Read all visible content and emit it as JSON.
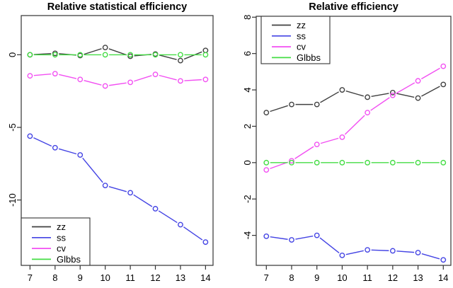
{
  "figure": {
    "background": "#ffffff",
    "axis_color": "#333333",
    "text_color": "#000000"
  },
  "chart_data": [
    {
      "type": "line",
      "title": "Relative statistical efficiency",
      "x": [
        7,
        8,
        9,
        10,
        11,
        12,
        13,
        14
      ],
      "xticks": [
        7,
        8,
        9,
        10,
        11,
        12,
        13,
        14
      ],
      "yticks": [
        0,
        -5,
        -10
      ],
      "xlim": [
        6.65,
        14.3
      ],
      "ylim": [
        -14.5,
        2.7
      ],
      "grid": false,
      "legend_position": "bottom-left",
      "legend_entries": [
        "zz",
        "ss",
        "cv",
        "Glbbs"
      ],
      "series": [
        {
          "name": "zz",
          "color": "#404040",
          "values": [
            0.0,
            0.1,
            -0.05,
            0.5,
            -0.1,
            0.05,
            -0.4,
            0.3
          ]
        },
        {
          "name": "ss",
          "color": "#4444e4",
          "values": [
            -5.6,
            -6.4,
            -6.9,
            -9.0,
            -9.5,
            -10.6,
            -11.7,
            -12.9
          ]
        },
        {
          "name": "cv",
          "color": "#f24ff2",
          "values": [
            -1.45,
            -1.3,
            -1.7,
            -2.15,
            -1.9,
            -1.35,
            -1.8,
            -1.7
          ]
        },
        {
          "name": "Glbbs",
          "color": "#44dd44",
          "values": [
            0,
            0,
            0,
            0,
            0,
            0,
            0,
            0
          ]
        }
      ]
    },
    {
      "type": "line",
      "title": "Relative efficiency",
      "x": [
        7,
        8,
        9,
        10,
        11,
        12,
        13,
        14
      ],
      "xticks": [
        7,
        8,
        9,
        10,
        11,
        12,
        13,
        14
      ],
      "yticks": [
        8,
        6,
        4,
        2,
        0,
        -2,
        -4
      ],
      "xlim": [
        6.6,
        14.3
      ],
      "ylim": [
        -5.65,
        8.05
      ],
      "grid": false,
      "legend_position": "top-left",
      "legend_entries": [
        "zz",
        "ss",
        "cv",
        "Glbbs"
      ],
      "series": [
        {
          "name": "zz",
          "color": "#404040",
          "values": [
            2.75,
            3.2,
            3.2,
            4.0,
            3.6,
            3.85,
            3.55,
            4.3
          ]
        },
        {
          "name": "ss",
          "color": "#4444e4",
          "values": [
            -4.05,
            -4.25,
            -4.0,
            -5.1,
            -4.8,
            -4.85,
            -4.95,
            -5.35
          ]
        },
        {
          "name": "cv",
          "color": "#f24ff2",
          "values": [
            -0.4,
            0.1,
            1.0,
            1.4,
            2.75,
            3.7,
            4.5,
            5.3
          ]
        },
        {
          "name": "Glbbs",
          "color": "#44dd44",
          "values": [
            0,
            0,
            0,
            0,
            0,
            0,
            0,
            0
          ]
        }
      ]
    }
  ]
}
